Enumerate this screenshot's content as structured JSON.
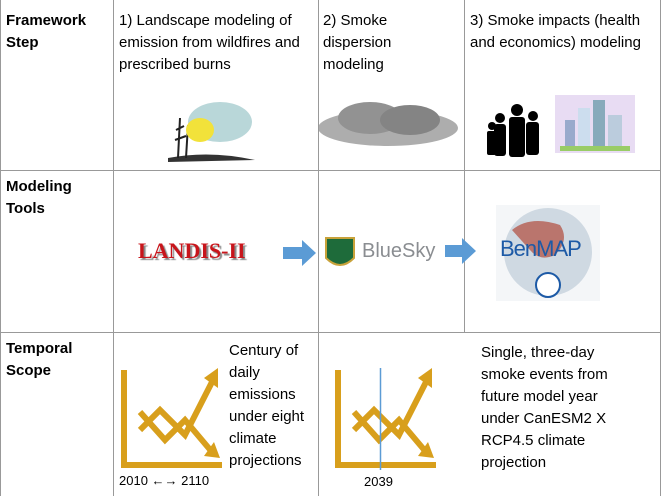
{
  "table": {
    "rows": [
      {
        "header": "Framework Step",
        "cells": [
          "1) Landscape modeling of emission from wildfires and prescribed burns",
          "2) Smoke dispersion modeling",
          "3) Smoke impacts (health and economics) modeling"
        ]
      },
      {
        "header": "Modeling Tools",
        "cells": [
          "LANDIS-II",
          "BlueSky",
          "BenMAP"
        ]
      },
      {
        "header": "Temporal Scope",
        "cells": [
          "Century of daily emissions under eight climate projections",
          "Single, three-day smoke events from future model year under CanESM2 X RCP4.5 climate projection"
        ],
        "years": [
          "2010 ←→ 2110",
          "2039"
        ]
      }
    ]
  }
}
